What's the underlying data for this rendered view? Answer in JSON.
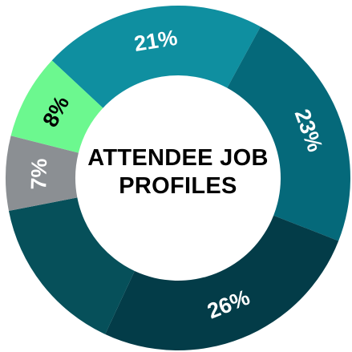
{
  "chart_data": {
    "type": "pie",
    "title": "ATTENDEE JOB PROFILES",
    "values": [
      21,
      23,
      26,
      15,
      7,
      8
    ],
    "value_labels": [
      "21%",
      "23%",
      "26%",
      null,
      "7%",
      "8%"
    ],
    "colors": [
      "#0f8fa0",
      "#05697a",
      "#033c48",
      "#06505a",
      "#8b8f93",
      "#6cf88f"
    ],
    "label_colors": [
      "#ffffff",
      "#ffffff",
      "#ffffff",
      "#ffffff",
      "#ffffff",
      "#000000"
    ],
    "donut": true
  }
}
